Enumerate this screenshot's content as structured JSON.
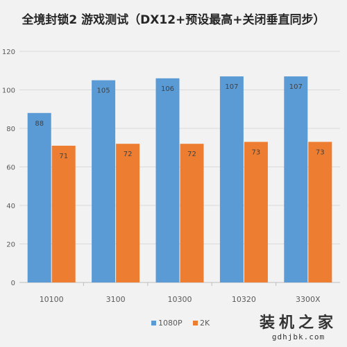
{
  "chart_data": {
    "type": "bar",
    "title": "全境封锁2 游戏测试（DX12+预设最高+关闭垂直同步）",
    "categories": [
      "10100",
      "3100",
      "10300",
      "10320",
      "3300X"
    ],
    "series": [
      {
        "name": "1080P",
        "values": [
          88,
          105,
          106,
          107,
          107
        ],
        "color": "#5b9bd5"
      },
      {
        "name": "2K",
        "values": [
          71,
          72,
          72,
          73,
          73
        ],
        "color": "#ed7d31"
      }
    ],
    "ylim": [
      0,
      120
    ],
    "yticks": [
      0,
      20,
      40,
      60,
      80,
      100,
      120
    ],
    "grid": true,
    "legend": "bottom"
  },
  "watermark": {
    "text": "装机之家",
    "url": "gdhjbk.com"
  }
}
